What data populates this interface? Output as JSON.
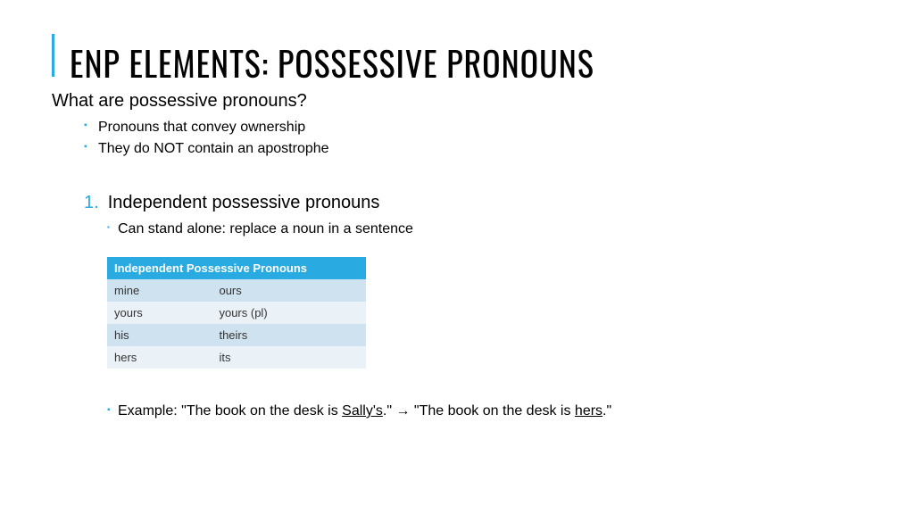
{
  "title": "ENP ELEMENTS: POSSESSIVE PRONOUNS",
  "subtitle": "What are possessive pronouns?",
  "bullets": [
    "Pronouns that convey ownership",
    "They do NOT contain an apostrophe"
  ],
  "section_number": "1.",
  "section_title": "Independent possessive pronouns",
  "section_sub": "Can stand alone: replace a noun in a sentence",
  "table": {
    "header": "Independent Possessive Pronouns",
    "header_bg": "#29abe2",
    "header_fg": "#ffffff",
    "row_odd_bg": "#cfe2ef",
    "row_even_bg": "#eaf1f7",
    "rows": [
      [
        "mine",
        "ours"
      ],
      [
        "yours",
        "yours (pl)"
      ],
      [
        "his",
        "theirs"
      ],
      [
        "hers",
        "its"
      ]
    ]
  },
  "example": {
    "prefix": "Example: \"The book on the desk is ",
    "u1": "Sally's",
    "mid": ".\" ",
    "arrow": "→",
    "mid2": " \"The book on the desk is ",
    "u2": "hers",
    "suffix": ".\""
  },
  "accent_color": "#29abe2"
}
